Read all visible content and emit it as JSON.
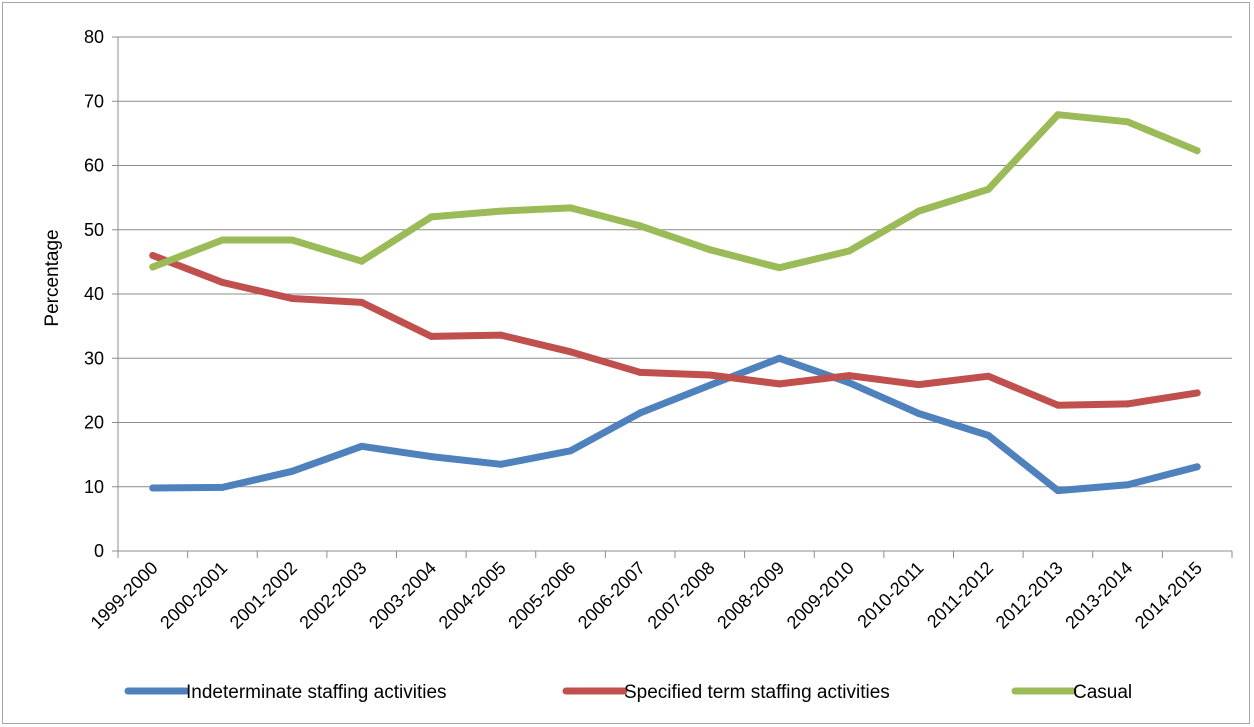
{
  "chart_data": {
    "type": "line",
    "title": "",
    "xlabel": "",
    "ylabel": "Percentage",
    "ylim": [
      0,
      80
    ],
    "yticks": [
      0,
      10,
      20,
      30,
      40,
      50,
      60,
      70,
      80
    ],
    "grid": true,
    "legend_position": "bottom",
    "categories": [
      "1999-2000",
      "2000-2001",
      "2001-2002",
      "2002-2003",
      "2003-2004",
      "2004-2005",
      "2005-2006",
      "2006-2007",
      "2007-2008",
      "2008-2009",
      "2009-2010",
      "2010-2011",
      "2011-2012",
      "2012-2013",
      "2013-2014",
      "2014-2015"
    ],
    "series": [
      {
        "name": "Indeterminate staffing activities",
        "color": "#4f81bd",
        "values": [
          9.8,
          9.9,
          12.4,
          16.3,
          14.7,
          13.5,
          15.6,
          21.5,
          25.8,
          30.0,
          26.2,
          21.4,
          18.0,
          9.4,
          10.3,
          13.1
        ]
      },
      {
        "name": "Specified term staffing activities",
        "color": "#c0504d",
        "values": [
          46.0,
          41.8,
          39.3,
          38.7,
          33.4,
          33.6,
          31.0,
          27.8,
          27.4,
          26.0,
          27.3,
          25.9,
          27.2,
          22.7,
          22.9,
          24.6
        ]
      },
      {
        "name": "Casual",
        "color": "#9bbb59",
        "values": [
          44.2,
          48.4,
          48.4,
          45.1,
          52.0,
          52.9,
          53.4,
          50.6,
          46.9,
          44.1,
          46.7,
          52.9,
          56.3,
          67.9,
          66.8,
          62.3
        ]
      }
    ]
  }
}
